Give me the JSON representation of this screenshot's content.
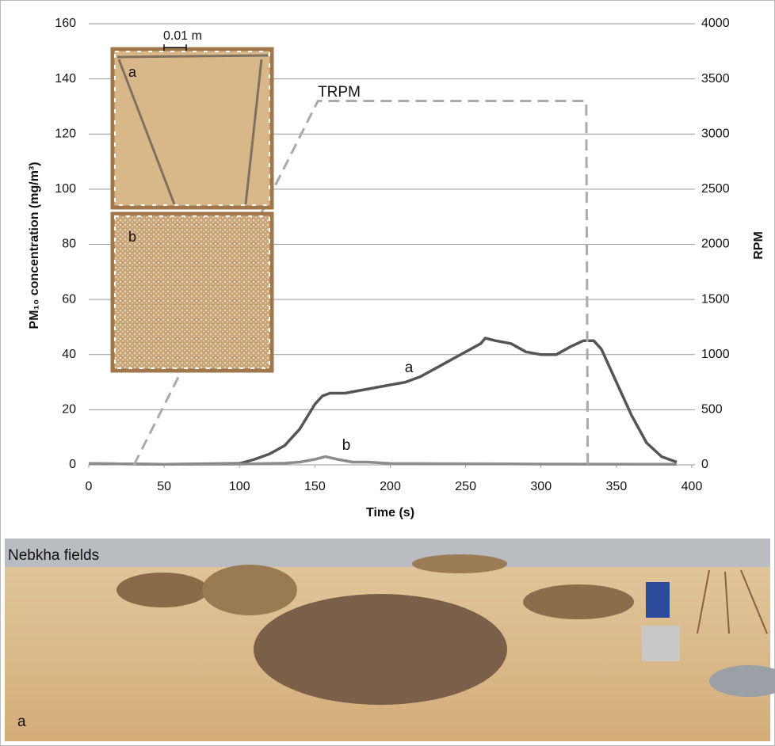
{
  "chart_data": {
    "type": "line",
    "x_label": "Time (s)",
    "y_label": "PM₁₀ concentration (mg/m³)",
    "y2_label": "RPM",
    "xlim": [
      0,
      400
    ],
    "xticks": [
      0,
      50,
      100,
      150,
      200,
      250,
      300,
      350,
      400
    ],
    "ylim": [
      0,
      160
    ],
    "yticks": [
      0,
      20,
      40,
      60,
      80,
      100,
      120,
      140,
      160
    ],
    "y2lim": [
      0,
      4000
    ],
    "y2ticks": [
      0,
      500,
      1000,
      1500,
      2000,
      2500,
      3000,
      3500,
      4000
    ],
    "grid": true,
    "series": [
      {
        "name": "a",
        "color": "#555555",
        "x": [
          0,
          50,
          100,
          110,
          120,
          130,
          140,
          150,
          155,
          160,
          170,
          180,
          190,
          200,
          210,
          220,
          230,
          240,
          250,
          260,
          263,
          270,
          280,
          290,
          300,
          310,
          320,
          328,
          335,
          340,
          350,
          360,
          370,
          380,
          390
        ],
        "values": [
          0.5,
          0.2,
          0.5,
          2,
          4,
          7,
          13,
          22,
          25,
          26,
          26,
          27,
          28,
          29,
          30,
          32,
          35,
          38,
          41,
          44,
          46,
          45,
          44,
          41,
          40,
          40,
          43,
          45,
          45,
          42,
          30,
          18,
          8,
          3,
          1
        ]
      },
      {
        "name": "b",
        "color": "#8c8c8c",
        "x": [
          0,
          50,
          100,
          130,
          140,
          150,
          157,
          165,
          175,
          185,
          200,
          250,
          300,
          390
        ],
        "values": [
          0.5,
          0.2,
          0.3,
          0.6,
          1,
          2,
          3,
          2,
          1,
          1,
          0.5,
          0.4,
          0.3,
          0.2
        ]
      },
      {
        "name": "TRPM",
        "color": "#aaaaaa",
        "axis": "y2",
        "dashed": true,
        "x": [
          30,
          152,
          330,
          331
        ],
        "values": [
          0,
          3300,
          3300,
          0
        ]
      }
    ],
    "inset_labels": [
      "a",
      "b"
    ],
    "scale_bar": "0.01 m"
  },
  "photo": {
    "caption": "Nebkha fields",
    "label": "a"
  }
}
